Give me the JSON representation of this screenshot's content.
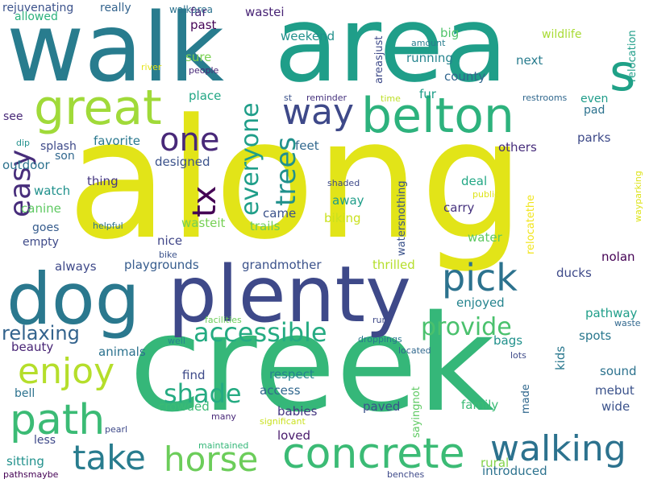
{
  "words": [
    {
      "text": "along",
      "color": "#e2e418"
    },
    {
      "text": "creek",
      "color": "#35b779"
    },
    {
      "text": "walk",
      "color": "#287c8e"
    },
    {
      "text": "area",
      "color": "#1f9e89"
    },
    {
      "text": "plenty",
      "color": "#3e4989"
    },
    {
      "text": "dog",
      "color": "#2a788e"
    },
    {
      "text": "belton",
      "color": "#2db27d"
    },
    {
      "text": "great",
      "color": "#a0da39"
    },
    {
      "text": "concrete",
      "color": "#3bbb75"
    },
    {
      "text": "path",
      "color": "#3bbb75"
    },
    {
      "text": "horse",
      "color": "#6ccd5a"
    },
    {
      "text": "walking",
      "color": "#2c728e"
    },
    {
      "text": "pick",
      "color": "#2c728e"
    },
    {
      "text": "take",
      "color": "#287c8e"
    },
    {
      "text": "enjoy",
      "color": "#b5de2b"
    },
    {
      "text": "one",
      "color": "#482878"
    },
    {
      "text": "way",
      "color": "#3e4989"
    },
    {
      "text": "s",
      "color": "#1fa187"
    },
    {
      "text": "tx",
      "color": "#440154"
    },
    {
      "text": "easy",
      "color": "#472d7b"
    },
    {
      "text": "trees",
      "color": "#21918c"
    },
    {
      "text": "everyone",
      "color": "#1f9e89"
    },
    {
      "text": "accessible",
      "color": "#25ab82"
    },
    {
      "text": "provide",
      "color": "#4ac16d"
    },
    {
      "text": "shade",
      "color": "#25ab82"
    },
    {
      "text": "relaxing",
      "color": "#33638d"
    },
    {
      "text": "walkarea",
      "color": "#2c728e"
    },
    {
      "text": "rejuvenating",
      "color": "#3b528b"
    },
    {
      "text": "really",
      "color": "#33638d"
    },
    {
      "text": "allowed",
      "color": "#2db27d"
    },
    {
      "text": "far",
      "color": "#472d7b"
    },
    {
      "text": "past",
      "color": "#450457"
    },
    {
      "text": "wastei",
      "color": "#482475"
    },
    {
      "text": "areasjust",
      "color": "#3e4a89"
    },
    {
      "text": "amount",
      "color": "#287d8e"
    },
    {
      "text": "wildlife",
      "color": "#a8db34"
    },
    {
      "text": "relocation",
      "color": "#1f9e89"
    },
    {
      "text": "weekend",
      "color": "#21918c"
    },
    {
      "text": "big",
      "color": "#50c46a"
    },
    {
      "text": "running",
      "color": "#25848e"
    },
    {
      "text": "next",
      "color": "#287c8e"
    },
    {
      "text": "county",
      "color": "#31668e"
    },
    {
      "text": "sure",
      "color": "#7ad151"
    },
    {
      "text": "people",
      "color": "#482878"
    },
    {
      "text": "river",
      "color": "#e5e419"
    },
    {
      "text": "reminder",
      "color": "#46327e"
    },
    {
      "text": "st",
      "color": "#3b528b"
    },
    {
      "text": "time",
      "color": "#bddf26"
    },
    {
      "text": "fur",
      "color": "#1f9e89"
    },
    {
      "text": "restrooms",
      "color": "#31688e"
    },
    {
      "text": "even",
      "color": "#1e9c89"
    },
    {
      "text": "pad",
      "color": "#2c728e"
    },
    {
      "text": "place",
      "color": "#22a785"
    },
    {
      "text": "see",
      "color": "#482878"
    },
    {
      "text": "dip",
      "color": "#21918c"
    },
    {
      "text": "splash",
      "color": "#3e4a89"
    },
    {
      "text": "son",
      "color": "#31688e"
    },
    {
      "text": "outdoor",
      "color": "#2c728e"
    },
    {
      "text": "favorite",
      "color": "#2a788e"
    },
    {
      "text": "designed",
      "color": "#3b528b"
    },
    {
      "text": "feet",
      "color": "#31688e"
    },
    {
      "text": "others",
      "color": "#472d7b"
    },
    {
      "text": "parks",
      "color": "#3e4a89"
    },
    {
      "text": "thing",
      "color": "#453781"
    },
    {
      "text": "watch",
      "color": "#21918c"
    },
    {
      "text": "canine",
      "color": "#5ec962"
    },
    {
      "text": "goes",
      "color": "#365c8d"
    },
    {
      "text": "empty",
      "color": "#3e4a89"
    },
    {
      "text": "nice",
      "color": "#404688"
    },
    {
      "text": "wasteit",
      "color": "#75d054"
    },
    {
      "text": "came",
      "color": "#3b528b"
    },
    {
      "text": "trails",
      "color": "#6ccd5a"
    },
    {
      "text": "biking",
      "color": "#cae11f"
    },
    {
      "text": "away",
      "color": "#1f9e89"
    },
    {
      "text": "shaded",
      "color": "#3e4989"
    },
    {
      "text": "watersnothing",
      "color": "#3b528b"
    },
    {
      "text": "deal",
      "color": "#22a785"
    },
    {
      "text": "carry",
      "color": "#46327e"
    },
    {
      "text": "water",
      "color": "#5ec962"
    },
    {
      "text": "relocatethe",
      "color": "#f1e51d"
    },
    {
      "text": "public",
      "color": "#dde318"
    },
    {
      "text": "wayparking",
      "color": "#dde318"
    },
    {
      "text": "helpful",
      "color": "#2c728e"
    },
    {
      "text": "bike",
      "color": "#3b528b"
    },
    {
      "text": "always",
      "color": "#3e4989"
    },
    {
      "text": "playgrounds",
      "color": "#365c8d"
    },
    {
      "text": "grandmother",
      "color": "#3b528b"
    },
    {
      "text": "thrilled",
      "color": "#b5de2b"
    },
    {
      "text": "nolan",
      "color": "#440154"
    },
    {
      "text": "ducks",
      "color": "#3e4a89"
    },
    {
      "text": "enjoyed",
      "color": "#25848e"
    },
    {
      "text": "pathway",
      "color": "#1f9e89"
    },
    {
      "text": "facilities",
      "color": "#6ccd5a"
    },
    {
      "text": "run",
      "color": "#3e4989"
    },
    {
      "text": "waste",
      "color": "#31688e"
    },
    {
      "text": "spots",
      "color": "#2a788e"
    },
    {
      "text": "beauty",
      "color": "#482475"
    },
    {
      "text": "animals",
      "color": "#2c728e"
    },
    {
      "text": "well",
      "color": "#26828e"
    },
    {
      "text": "droppings",
      "color": "#2a788e"
    },
    {
      "text": "bags",
      "color": "#21918c"
    },
    {
      "text": "located",
      "color": "#31688e"
    },
    {
      "text": "lots",
      "color": "#3e4a89"
    },
    {
      "text": "kids",
      "color": "#2a788e"
    },
    {
      "text": "respect",
      "color": "#25848e"
    },
    {
      "text": "find",
      "color": "#3e4a89"
    },
    {
      "text": "sound",
      "color": "#2c728e"
    },
    {
      "text": "bell",
      "color": "#2c728e"
    },
    {
      "text": "access",
      "color": "#31688e"
    },
    {
      "text": "babies",
      "color": "#453781"
    },
    {
      "text": "sayingnot",
      "color": "#5ec962"
    },
    {
      "text": "mebut",
      "color": "#3b528b"
    },
    {
      "text": "made",
      "color": "#31688e"
    },
    {
      "text": "family",
      "color": "#3bbb75"
    },
    {
      "text": "wide",
      "color": "#3b528b"
    },
    {
      "text": "crowded",
      "color": "#3bbb75"
    },
    {
      "text": "paved",
      "color": "#3b528b"
    },
    {
      "text": "less",
      "color": "#3e4989"
    },
    {
      "text": "pearl",
      "color": "#3e4989"
    },
    {
      "text": "many",
      "color": "#482878"
    },
    {
      "text": "significant",
      "color": "#cae11f"
    },
    {
      "text": "loved",
      "color": "#481a6c"
    },
    {
      "text": "maintained",
      "color": "#35b779"
    },
    {
      "text": "sitting",
      "color": "#21918c"
    },
    {
      "text": "pathsmaybe",
      "color": "#440154"
    },
    {
      "text": "rural",
      "color": "#84d44b"
    },
    {
      "text": "introduced",
      "color": "#2c728e"
    },
    {
      "text": "benches",
      "color": "#3e4989"
    }
  ]
}
